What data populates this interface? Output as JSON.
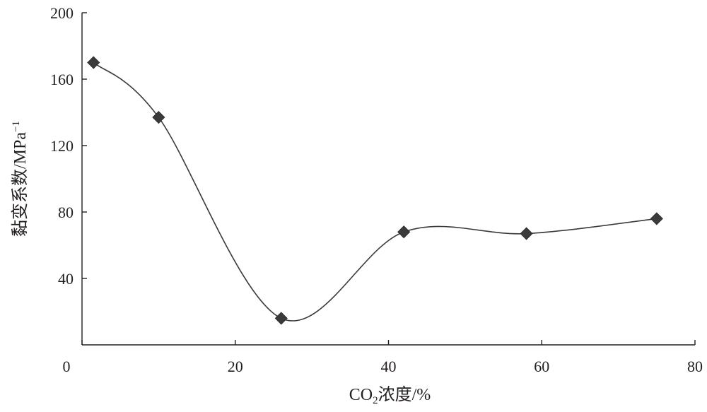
{
  "chart_data": {
    "type": "line",
    "smooth": true,
    "marker": "diamond",
    "x": [
      1.5,
      10,
      26,
      42,
      58,
      75
    ],
    "y": [
      170,
      137,
      16,
      68,
      67,
      76
    ],
    "xlabel_main": "CO",
    "xlabel_sub": "2",
    "xlabel_rest": "浓度/%",
    "ylabel_main": "黏变系数/MPa",
    "ylabel_sup": "−1",
    "xlim": [
      0,
      80
    ],
    "ylim": [
      0,
      200
    ],
    "xticks": [
      0,
      20,
      40,
      60,
      80
    ],
    "yticks": [
      40,
      80,
      120,
      160,
      200
    ],
    "grid": false,
    "colors": {
      "line": "#3a3a3a",
      "axis": "#231f20"
    }
  }
}
